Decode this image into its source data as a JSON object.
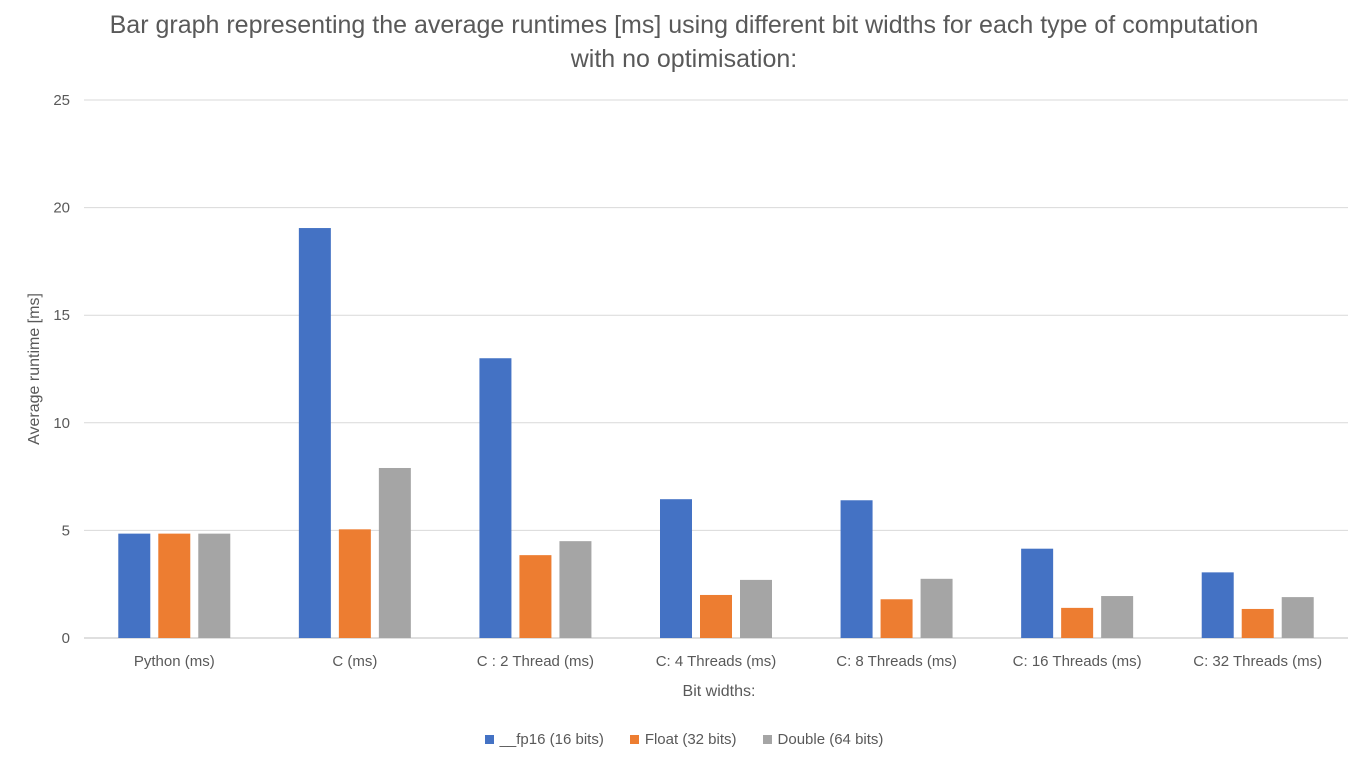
{
  "chart_data": {
    "type": "bar",
    "title": "Bar graph representing the average runtimes [ms] using different bit widths for each type of computation with no optimisation:",
    "xlabel": "Bit widths:",
    "ylabel": "Average runtime [ms]",
    "ylim": [
      0,
      25
    ],
    "yticks": [
      0,
      5,
      10,
      15,
      20,
      25
    ],
    "grid": true,
    "legend_position": "bottom",
    "categories": [
      "Python (ms)",
      "C (ms)",
      "C : 2 Thread (ms)",
      "C: 4 Threads (ms)",
      "C: 8 Threads (ms)",
      "C: 16 Threads (ms)",
      "C: 32 Threads (ms)"
    ],
    "series": [
      {
        "name": "__fp16 (16 bits)",
        "color": "#4472C4",
        "values": [
          4.85,
          19.05,
          13.0,
          6.45,
          6.4,
          4.15,
          3.05
        ]
      },
      {
        "name": "Float (32 bits)",
        "color": "#ED7D31",
        "values": [
          4.85,
          5.05,
          3.85,
          2.0,
          1.8,
          1.4,
          1.35
        ]
      },
      {
        "name": "Double (64 bits)",
        "color": "#A5A5A5",
        "values": [
          4.85,
          7.9,
          4.5,
          2.7,
          2.75,
          1.95,
          1.9
        ]
      }
    ]
  }
}
